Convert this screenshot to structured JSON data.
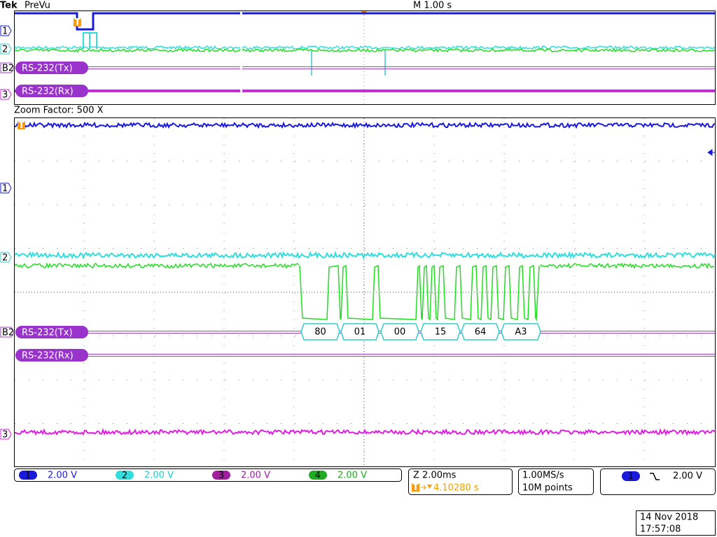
{
  "header": {
    "brand": "Tek",
    "mode": "PreVu",
    "timebase": "M 1.00 s",
    "trigger_icon": "T"
  },
  "overview": {
    "channel_markers": [
      "1",
      "2",
      "B2",
      "3"
    ],
    "bus_labels": [
      "RS-232(Tx)",
      "RS-232(Rx)"
    ]
  },
  "zoom": {
    "label": "Zoom Factor: 500 X",
    "channel_markers": [
      "1",
      "2",
      "B2",
      "3"
    ],
    "bus_labels": [
      "RS-232(Tx)",
      "RS-232(Rx)"
    ],
    "decoded_bytes": [
      "80",
      "01",
      "00",
      "15",
      "64",
      "A3"
    ]
  },
  "status": {
    "channels": [
      {
        "number": "1",
        "scale": "2.00 V"
      },
      {
        "number": "2",
        "scale": "2.00 V"
      },
      {
        "number": "3",
        "scale": "2.00 V"
      },
      {
        "number": "4",
        "scale": "2.00 V"
      }
    ],
    "zoom_scale": "Z 2.00ms",
    "trigger_position": "4.10280 s",
    "sample_rate": "1.00MS/s",
    "record_length": "10M points",
    "trigger": {
      "source": "1",
      "level": "2.00 V"
    },
    "date": "14 Nov 2018",
    "time": "17:57:08"
  }
}
